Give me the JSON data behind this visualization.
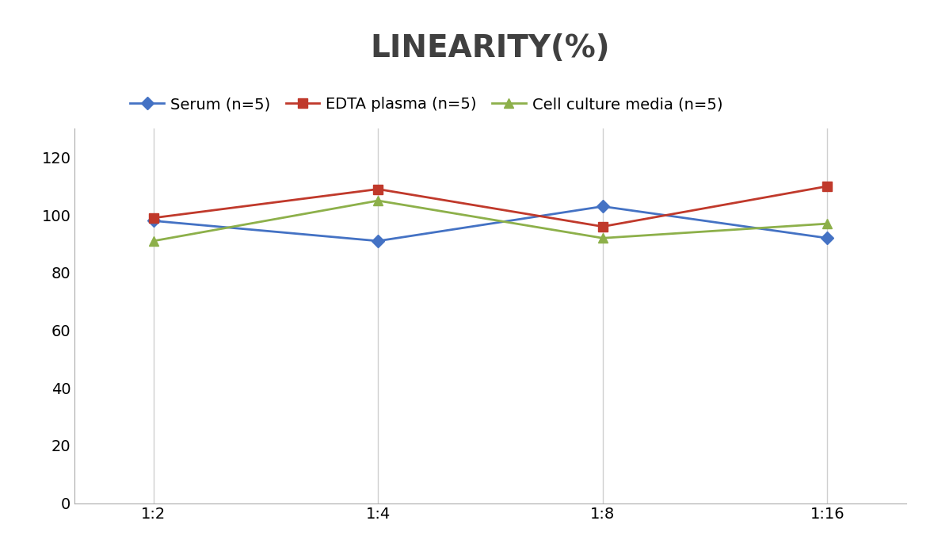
{
  "title": "LINEARITY(%)",
  "title_fontsize": 28,
  "title_fontweight": "bold",
  "title_color": "#404040",
  "x_labels": [
    "1:2",
    "1:4",
    "1:8",
    "1:16"
  ],
  "x_values": [
    0,
    1,
    2,
    3
  ],
  "series": [
    {
      "label": "Serum (n=5)",
      "values": [
        98,
        91,
        103,
        92
      ],
      "color": "#4472C4",
      "marker": "D",
      "markersize": 8,
      "linewidth": 2
    },
    {
      "label": "EDTA plasma (n=5)",
      "values": [
        99,
        109,
        96,
        110
      ],
      "color": "#C0392B",
      "marker": "s",
      "markersize": 8,
      "linewidth": 2
    },
    {
      "label": "Cell culture media (n=5)",
      "values": [
        91,
        105,
        92,
        97
      ],
      "color": "#8DB04A",
      "marker": "^",
      "markersize": 9,
      "linewidth": 2
    }
  ],
  "ylim": [
    0,
    130
  ],
  "yticks": [
    0,
    20,
    40,
    60,
    80,
    100,
    120
  ],
  "grid_color": "#D0D0D0",
  "background_color": "#FFFFFF",
  "legend_fontsize": 14,
  "tick_fontsize": 14
}
